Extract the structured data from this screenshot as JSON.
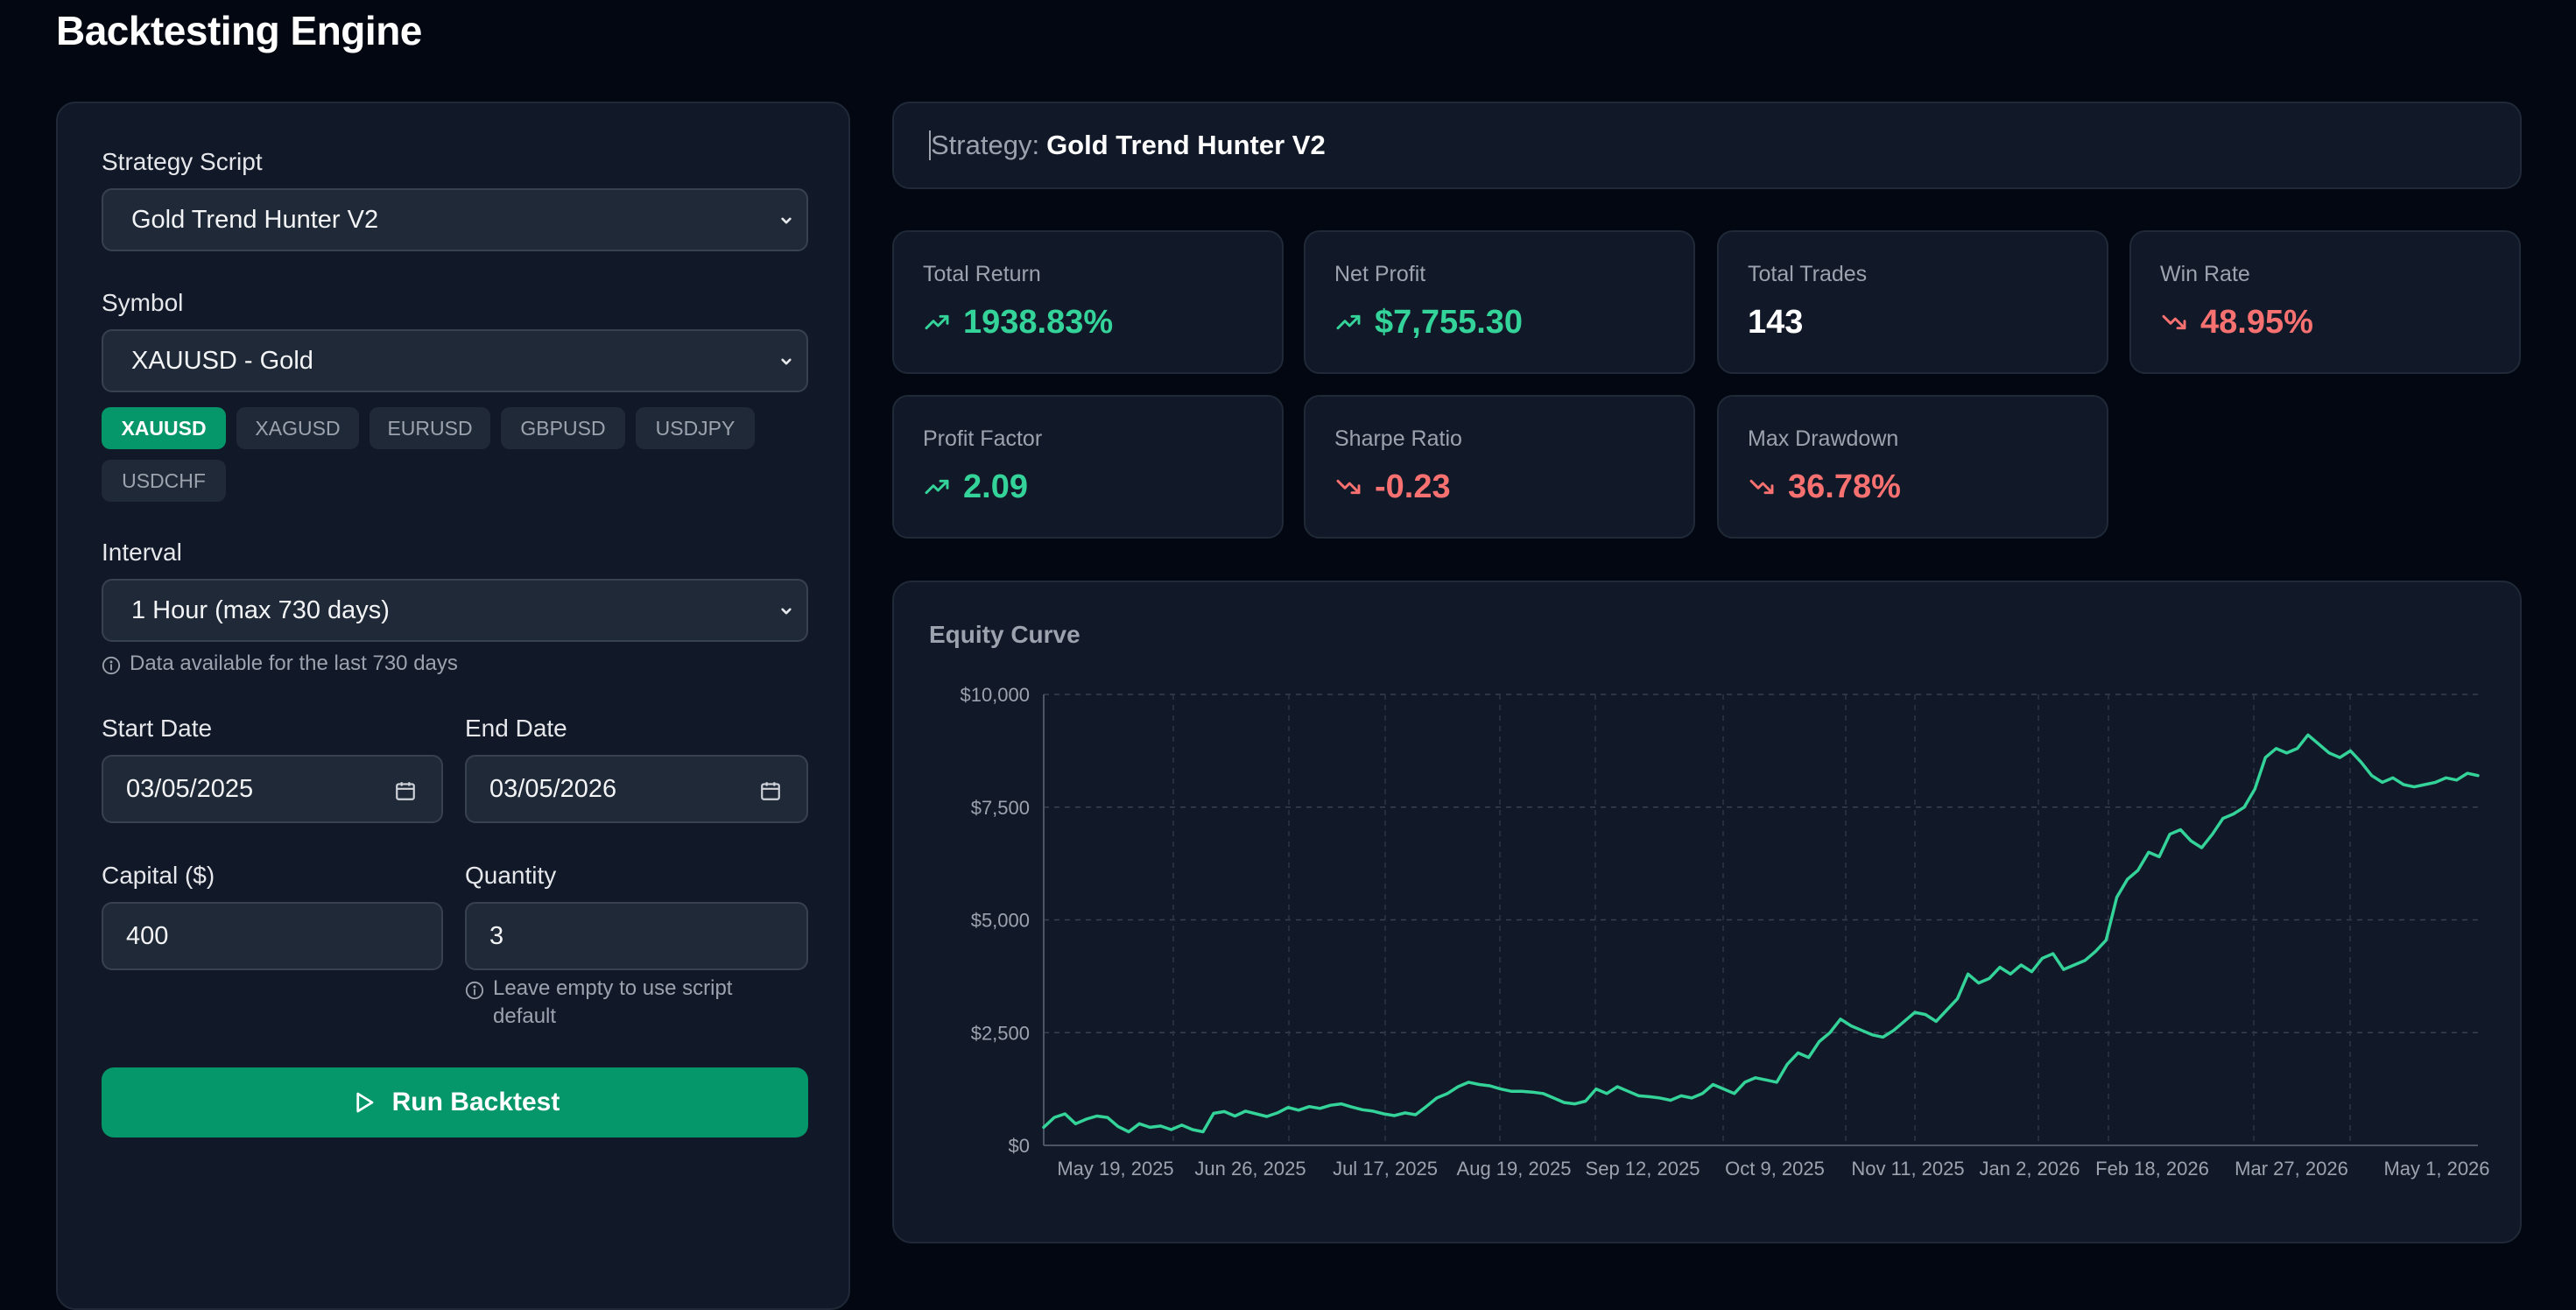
{
  "page": {
    "title": "Backtesting Engine"
  },
  "config": {
    "strategy_label": "Strategy Script",
    "strategy_value": "Gold Trend Hunter V2",
    "symbol_label": "Symbol",
    "symbol_value": "XAUUSD - Gold",
    "symbol_chips": [
      "XAUUSD",
      "XAGUSD",
      "EURUSD",
      "GBPUSD",
      "USDJPY",
      "USDCHF"
    ],
    "active_chip": "XAUUSD",
    "interval_label": "Interval",
    "interval_value": "1 Hour (max 730 days)",
    "interval_hint": "Data available for the last 730 days",
    "start_label": "Start Date",
    "start_value": "03/05/2025",
    "end_label": "End Date",
    "end_value": "03/05/2026",
    "capital_label": "Capital ($)",
    "capital_value": "400",
    "quantity_label": "Quantity",
    "quantity_value": "3",
    "quantity_hint": "Leave empty to use script default",
    "run_label": "Run Backtest"
  },
  "results": {
    "strategy_prefix": "Strategy:",
    "strategy_name": "Gold Trend Hunter V2",
    "metrics": [
      {
        "label": "Total Return",
        "value": "1938.83%",
        "trend": "up"
      },
      {
        "label": "Net Profit",
        "value": "$7,755.30",
        "trend": "up"
      },
      {
        "label": "Total Trades",
        "value": "143",
        "trend": "none"
      },
      {
        "label": "Win Rate",
        "value": "48.95%",
        "trend": "down"
      },
      {
        "label": "Profit Factor",
        "value": "2.09",
        "trend": "up"
      },
      {
        "label": "Sharpe Ratio",
        "value": "-0.23",
        "trend": "down"
      },
      {
        "label": "Max Drawdown",
        "value": "36.78%",
        "trend": "down"
      }
    ]
  },
  "colors": {
    "accent": "#059669",
    "positive": "#34d399",
    "negative": "#f87171",
    "line": "#34d399"
  },
  "icons": {
    "trend_up": "trending-up-icon",
    "trend_down": "trending-down-icon",
    "info": "info-icon",
    "calendar": "calendar-icon",
    "chevron": "chevron-down-icon",
    "play": "play-icon"
  },
  "chart_data": {
    "type": "line",
    "title": "Equity Curve",
    "y_ticks": [
      "$0",
      "$2,500",
      "$5,000",
      "$7,500",
      "$10,000"
    ],
    "ylim": [
      0,
      10000
    ],
    "x_ticks": [
      "May 19, 2025",
      "Jun 26, 2025",
      "Jul 17, 2025",
      "Aug 19, 2025",
      "Sep 12, 2025",
      "Oct 9, 2025",
      "Nov 11, 2025",
      "Jan 2, 2026",
      "Feb 18, 2026",
      "Mar 27, 2026",
      "May 1, 2026"
    ],
    "grid": true,
    "series": [
      {
        "values": [
          400,
          620,
          700,
          480,
          580,
          650,
          620,
          420,
          300,
          480,
          400,
          430,
          350,
          450,
          350,
          300,
          710,
          750,
          650,
          760,
          700,
          640,
          720,
          840,
          780,
          860,
          820,
          890,
          920,
          850,
          790,
          760,
          700,
          660,
          720,
          680,
          860,
          1050,
          1150,
          1300,
          1400,
          1350,
          1320,
          1250,
          1200,
          1200,
          1180,
          1150,
          1050,
          950,
          920,
          980,
          1250,
          1150,
          1300,
          1200,
          1100,
          1080,
          1050,
          1000,
          1100,
          1050,
          1150,
          1350,
          1250,
          1150,
          1400,
          1500,
          1450,
          1400,
          1800,
          2050,
          1950,
          2300,
          2500,
          2800,
          2650,
          2550,
          2450,
          2400,
          2550,
          2750,
          2950,
          2900,
          2750,
          3000,
          3250,
          3800,
          3600,
          3700,
          3950,
          3800,
          4000,
          3850,
          4150,
          4250,
          3900,
          4000,
          4100,
          4300,
          4550,
          5500,
          5900,
          6100,
          6500,
          6400,
          6900,
          7000,
          6750,
          6600,
          6900,
          7250,
          7350,
          7500,
          7900,
          8600,
          8800,
          8700,
          8800,
          9100,
          8900,
          8700,
          8600,
          8750,
          8500,
          8200,
          8050,
          8150,
          8000,
          7950,
          8000,
          8050,
          8150,
          8100,
          8250,
          8200
        ]
      }
    ]
  }
}
